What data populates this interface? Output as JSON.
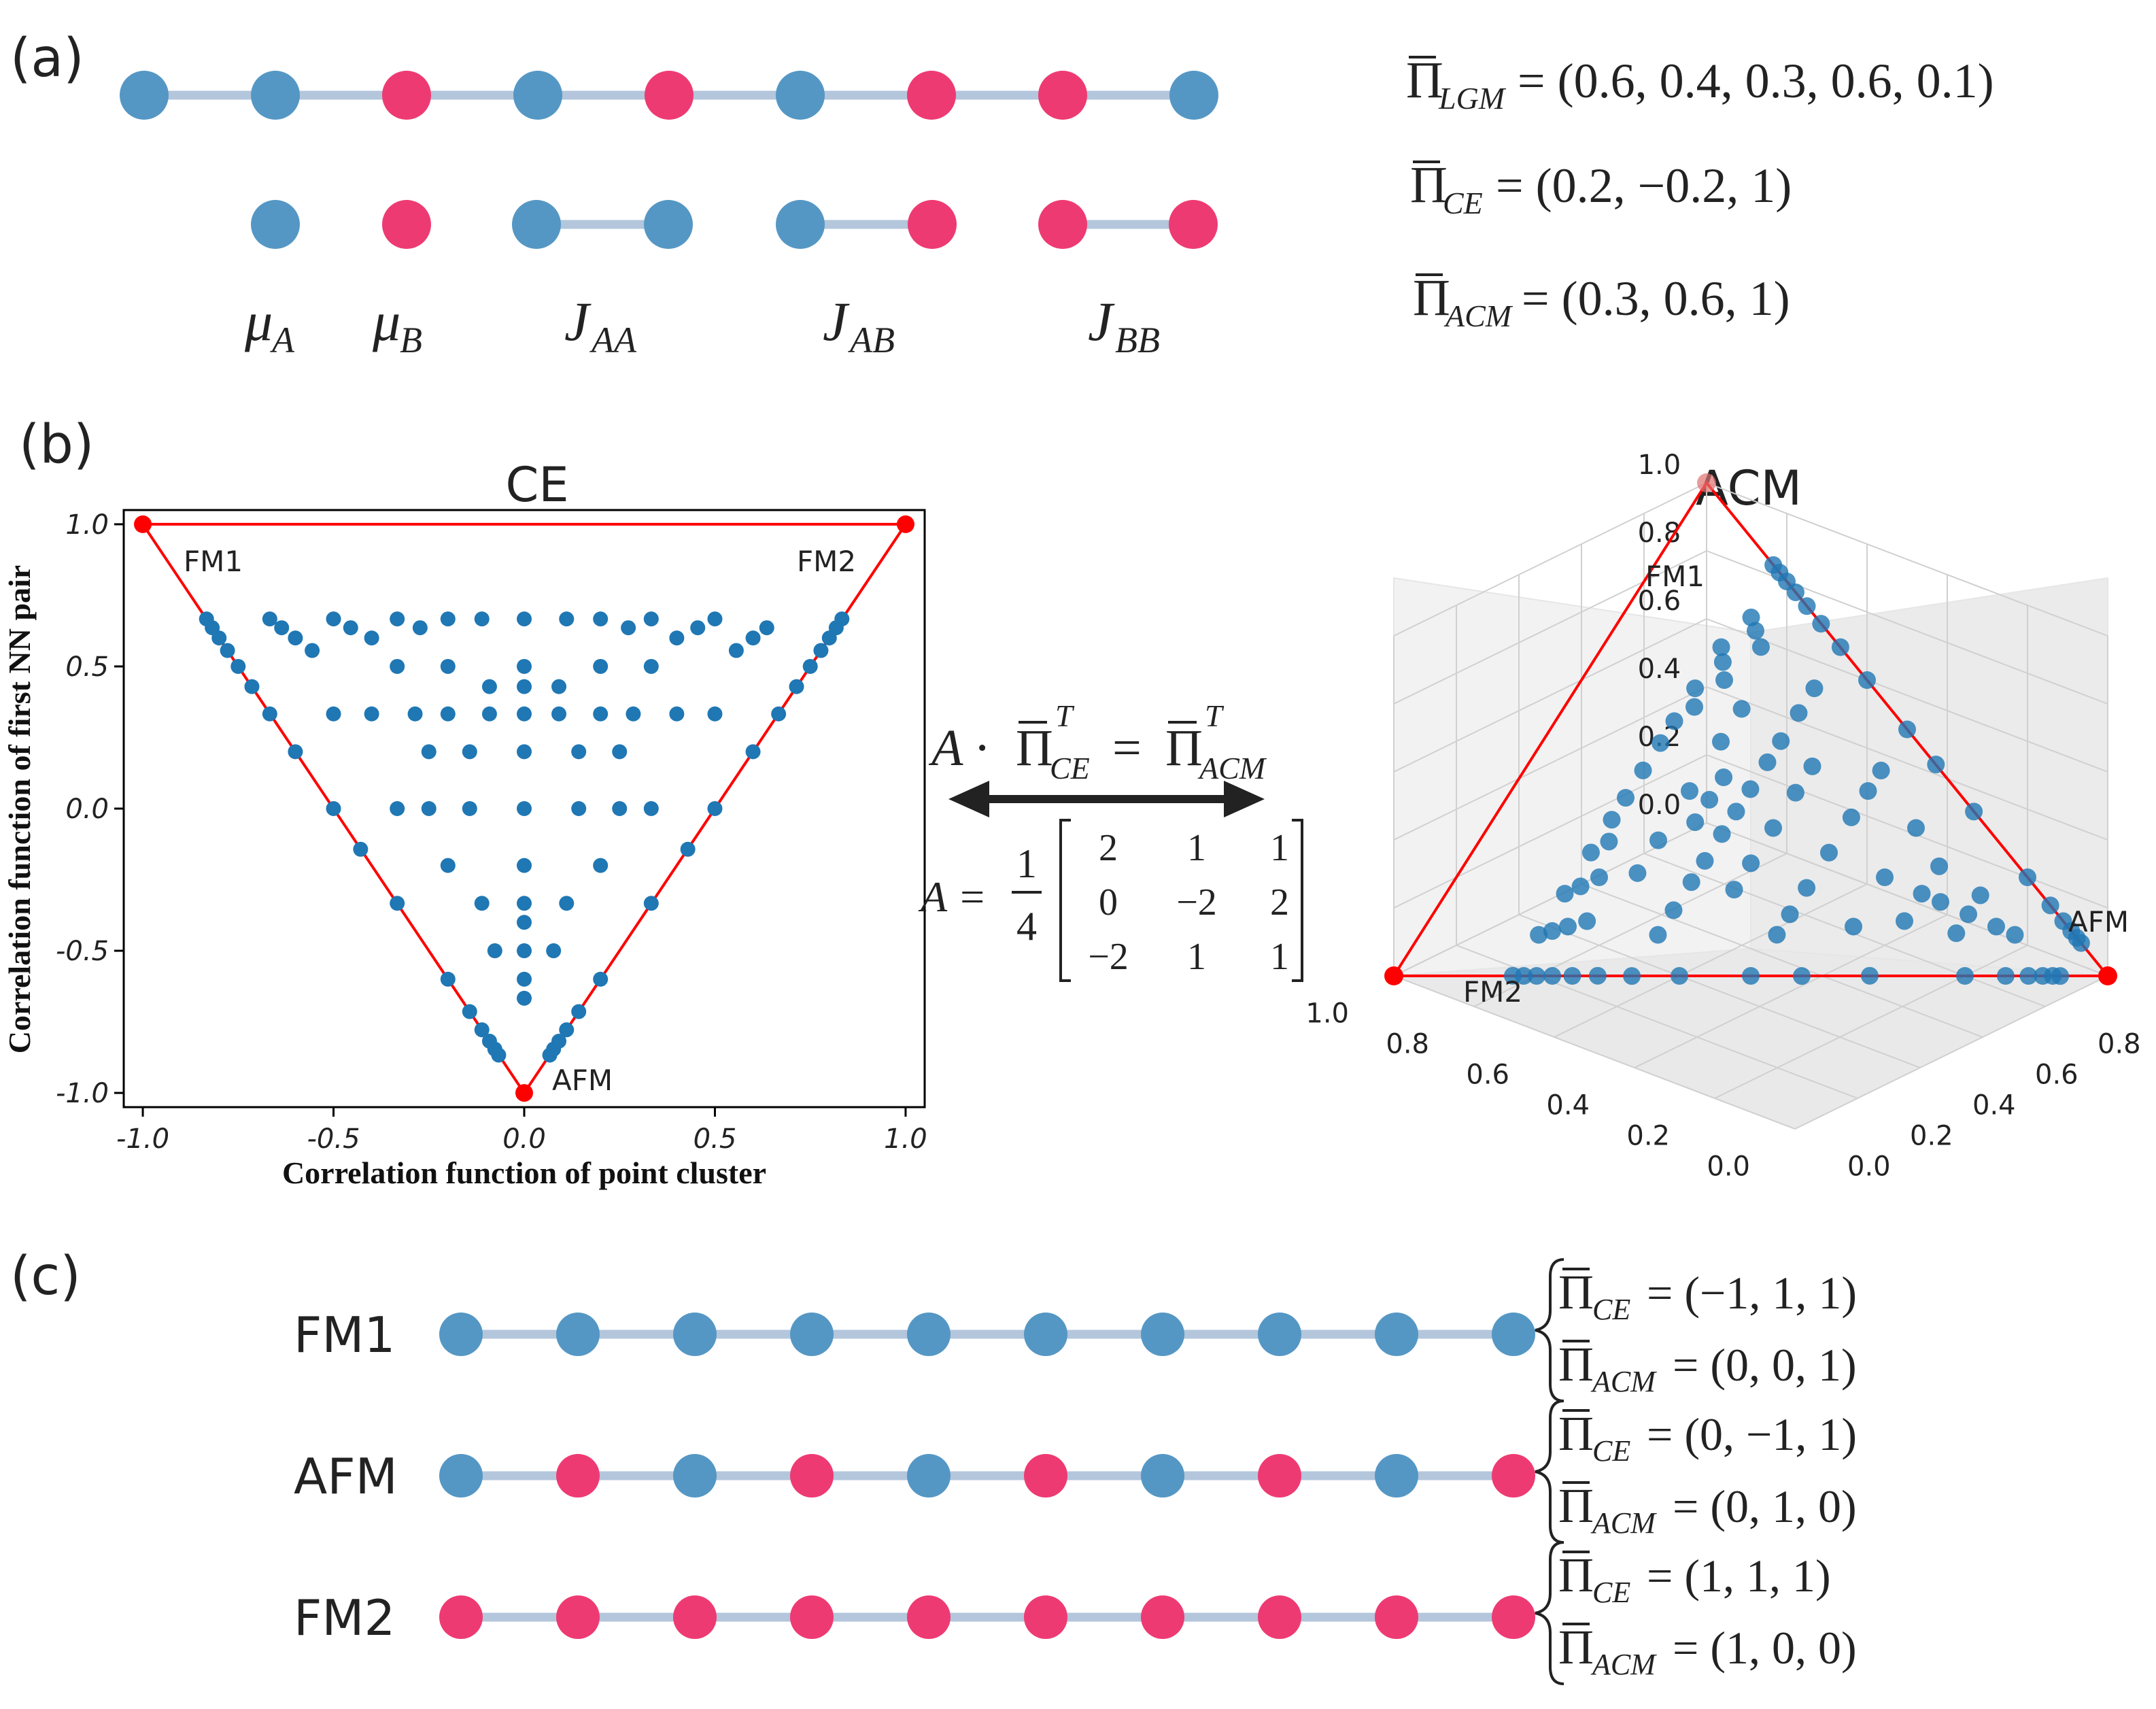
{
  "colors": {
    "blue": "#5597c4",
    "pink": "#ee3a73",
    "bond": "#b3c6dc",
    "scatter": "#1f77b4",
    "boundary": "#ff0000"
  },
  "panel_a": {
    "label": "(a)",
    "chain": [
      "A",
      "A",
      "B",
      "A",
      "B",
      "A",
      "B",
      "B",
      "A"
    ],
    "clusters": [
      {
        "name": "mu-a",
        "sites": [
          "A"
        ],
        "label_main": "μ",
        "label_sub": "A"
      },
      {
        "name": "mu-b",
        "sites": [
          "B"
        ],
        "label_main": "μ",
        "label_sub": "B"
      },
      {
        "name": "j-aa",
        "sites": [
          "A",
          "A"
        ],
        "label_main": "J",
        "label_sub": "AA"
      },
      {
        "name": "j-ab",
        "sites": [
          "A",
          "B"
        ],
        "label_main": "J",
        "label_sub": "AB"
      },
      {
        "name": "j-bb",
        "sites": [
          "B",
          "B"
        ],
        "label_main": "J",
        "label_sub": "BB"
      }
    ],
    "equations": [
      {
        "sub": "LGM",
        "rhs": "= (0.6, 0.4, 0.3, 0.6, 0.1)"
      },
      {
        "sub": "CE",
        "rhs": "= (0.2, −0.2, 1)"
      },
      {
        "sub": "ACM",
        "rhs": "= (0.3, 0.6, 1)"
      }
    ]
  },
  "panel_b": {
    "label": "(b)",
    "mapping": {
      "lhs": "A ·",
      "eq": "=",
      "sub1": "CE",
      "sub2": "ACM",
      "sup": "T",
      "matrix_prefix": "A =",
      "frac_num": "1",
      "frac_den": "4",
      "matrix": [
        [
          "2",
          "1",
          "1"
        ],
        [
          "0",
          "−2",
          "2"
        ],
        [
          "−2",
          "1",
          "1"
        ]
      ]
    },
    "chart_data": [
      {
        "type": "scatter",
        "title": "CE",
        "xlabel": "Correlation function of point cluster",
        "ylabel": "Correlation function of first NN pair",
        "xlim": [
          -1.05,
          1.05
        ],
        "ylim": [
          -1.05,
          1.05
        ],
        "xticks": [
          "-1.0",
          "-0.5",
          "0.0",
          "0.5",
          "1.0"
        ],
        "yticks": [
          "1.0",
          "0.5",
          "0.0",
          "-0.5",
          "-1.0"
        ],
        "boundary": [
          [
            -1,
            1
          ],
          [
            1,
            1
          ],
          [
            0,
            -1
          ]
        ],
        "vertex_labels": [
          "FM1",
          "FM2",
          "AFM"
        ],
        "series": [
          {
            "x": [
              -0.833,
              -0.818,
              -0.8,
              -0.778,
              -0.75,
              -0.714,
              -0.667,
              -0.6,
              -0.5,
              -0.429,
              -0.333,
              -0.2,
              -0.143,
              -0.111,
              -0.091,
              -0.077,
              -0.067,
              0.067,
              0.077,
              0.091,
              0.111,
              0.143,
              0.2,
              0.333,
              0.429,
              0.5,
              0.6,
              0.667,
              0.714,
              0.75,
              0.778,
              0.8,
              0.818,
              0.833,
              -0.667,
              -0.636,
              -0.6,
              -0.556,
              -0.5,
              -0.455,
              -0.4,
              -0.333,
              -0.273,
              -0.2,
              -0.111,
              0,
              0.111,
              0.2,
              0.273,
              0.333,
              0.4,
              0.455,
              0.5,
              0.556,
              0.6,
              0.636,
              -0.5,
              -0.4,
              -0.286,
              -0.2,
              -0.091,
              0,
              0.091,
              0.2,
              0.286,
              0.4,
              0.5,
              -0.333,
              -0.25,
              -0.143,
              0,
              0.143,
              0.25,
              0.333,
              -0.333,
              -0.2,
              0,
              0.2,
              0.333,
              -0.25,
              -0.143,
              0,
              0.143,
              0.25,
              -0.2,
              0,
              0.2,
              -0.111,
              0,
              0.111,
              -0.077,
              0,
              0.077,
              -0.091,
              0,
              0.091,
              0,
              0,
              0
            ],
            "y": [
              0.667,
              0.636,
              0.6,
              0.556,
              0.5,
              0.429,
              0.333,
              0.2,
              0,
              -0.143,
              -0.333,
              -0.6,
              -0.714,
              -0.778,
              -0.818,
              -0.846,
              -0.867,
              -0.867,
              -0.846,
              -0.818,
              -0.778,
              -0.714,
              -0.6,
              -0.333,
              -0.143,
              0,
              0.2,
              0.333,
              0.429,
              0.5,
              0.556,
              0.6,
              0.636,
              0.667,
              0.667,
              0.636,
              0.6,
              0.556,
              0.667,
              0.636,
              0.6,
              0.667,
              0.636,
              0.667,
              0.667,
              0.667,
              0.667,
              0.667,
              0.636,
              0.667,
              0.6,
              0.636,
              0.667,
              0.556,
              0.6,
              0.636,
              0.333,
              0.333,
              0.333,
              0.333,
              0.333,
              0.333,
              0.333,
              0.333,
              0.333,
              0.333,
              0.333,
              0.0,
              0.0,
              0.0,
              0.0,
              0.0,
              0.0,
              0.0,
              0.5,
              0.5,
              0.5,
              0.5,
              0.5,
              0.2,
              0.2,
              0.2,
              0.2,
              0.2,
              -0.2,
              -0.2,
              -0.2,
              -0.333,
              -0.333,
              -0.333,
              -0.5,
              -0.5,
              -0.5,
              0.429,
              0.429,
              0.429,
              -0.4,
              -0.6,
              -0.667
            ]
          }
        ]
      },
      {
        "type": "scatter3d",
        "title": "ACM",
        "axis_range": [
          0,
          1
        ],
        "ticks": [
          "0.0",
          "0.2",
          "0.4",
          "0.6",
          "0.8",
          "1.0"
        ],
        "vertex_labels": [
          "FM1",
          "FM2",
          "AFM"
        ]
      }
    ]
  },
  "panel_c": {
    "label": "(c)",
    "rows": [
      {
        "name": "FM1",
        "sites": [
          "A",
          "A",
          "A",
          "A",
          "A",
          "A",
          "A",
          "A",
          "A",
          "A"
        ],
        "ce": "= (−1, 1, 1)",
        "acm": "= (0, 0, 1)"
      },
      {
        "name": "AFM",
        "sites": [
          "A",
          "B",
          "A",
          "B",
          "A",
          "B",
          "A",
          "B",
          "A",
          "B"
        ],
        "ce": "= (0, −1, 1)",
        "acm": "= (0, 1, 0)"
      },
      {
        "name": "FM2",
        "sites": [
          "B",
          "B",
          "B",
          "B",
          "B",
          "B",
          "B",
          "B",
          "B",
          "B"
        ],
        "ce": "= (1, 1, 1)",
        "acm": "= (1, 0, 0)"
      }
    ],
    "sub_ce": "CE",
    "sub_acm": "ACM"
  },
  "pi_symbol": "Π"
}
